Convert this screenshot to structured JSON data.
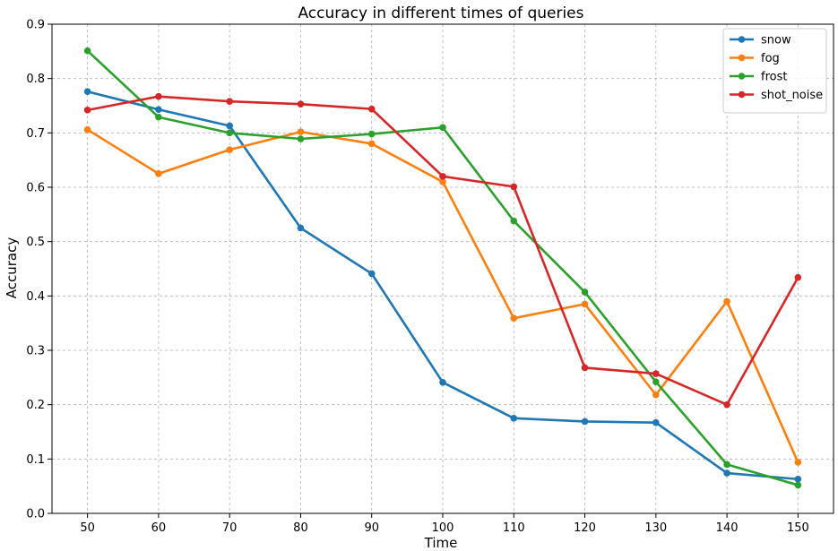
{
  "chart_data": {
    "type": "line",
    "title": "Accuracy in different times of queries",
    "xlabel": "Time",
    "ylabel": "Accuracy",
    "x": [
      50,
      60,
      70,
      80,
      90,
      100,
      110,
      120,
      130,
      140,
      150
    ],
    "xlim": [
      45,
      155
    ],
    "ylim": [
      0,
      0.9
    ],
    "yticks": [
      0.0,
      0.1,
      0.2,
      0.3,
      0.4,
      0.5,
      0.6,
      0.7,
      0.8,
      0.9
    ],
    "grid": true,
    "legend_position": "top-right",
    "series": [
      {
        "name": "snow",
        "color": "#1f77b4",
        "values": [
          0.776,
          0.743,
          0.713,
          0.525,
          0.441,
          0.241,
          0.175,
          0.169,
          0.167,
          0.074,
          0.063
        ]
      },
      {
        "name": "fog",
        "color": "#ff7f0e",
        "values": [
          0.706,
          0.625,
          0.669,
          0.702,
          0.68,
          0.61,
          0.359,
          0.385,
          0.218,
          0.39,
          0.094
        ]
      },
      {
        "name": "frost",
        "color": "#2ca02c",
        "values": [
          0.851,
          0.729,
          0.7,
          0.689,
          0.698,
          0.71,
          0.538,
          0.407,
          0.242,
          0.09,
          0.052
        ]
      },
      {
        "name": "shot_noise",
        "color": "#d62728",
        "values": [
          0.742,
          0.767,
          0.758,
          0.753,
          0.744,
          0.62,
          0.601,
          0.268,
          0.257,
          0.2,
          0.434
        ]
      }
    ]
  }
}
